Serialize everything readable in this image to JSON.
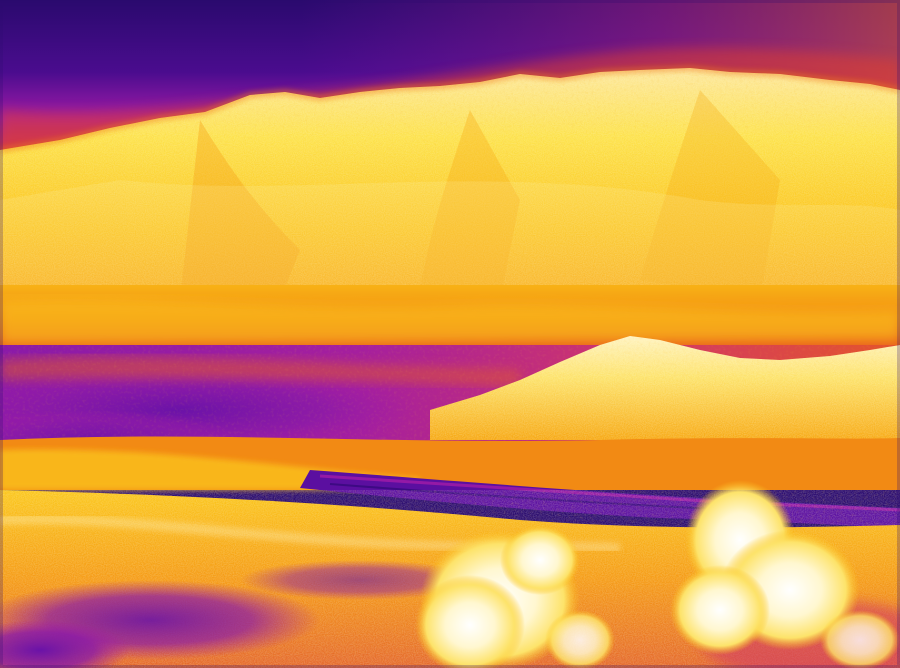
{
  "image": {
    "kind": "thermal landscape photograph",
    "palette": [
      "#2a0a6e",
      "#5b0fa0",
      "#a21ca8",
      "#e0402e",
      "#f07a12",
      "#f9b712",
      "#fde24a",
      "#fff7c8"
    ]
  }
}
